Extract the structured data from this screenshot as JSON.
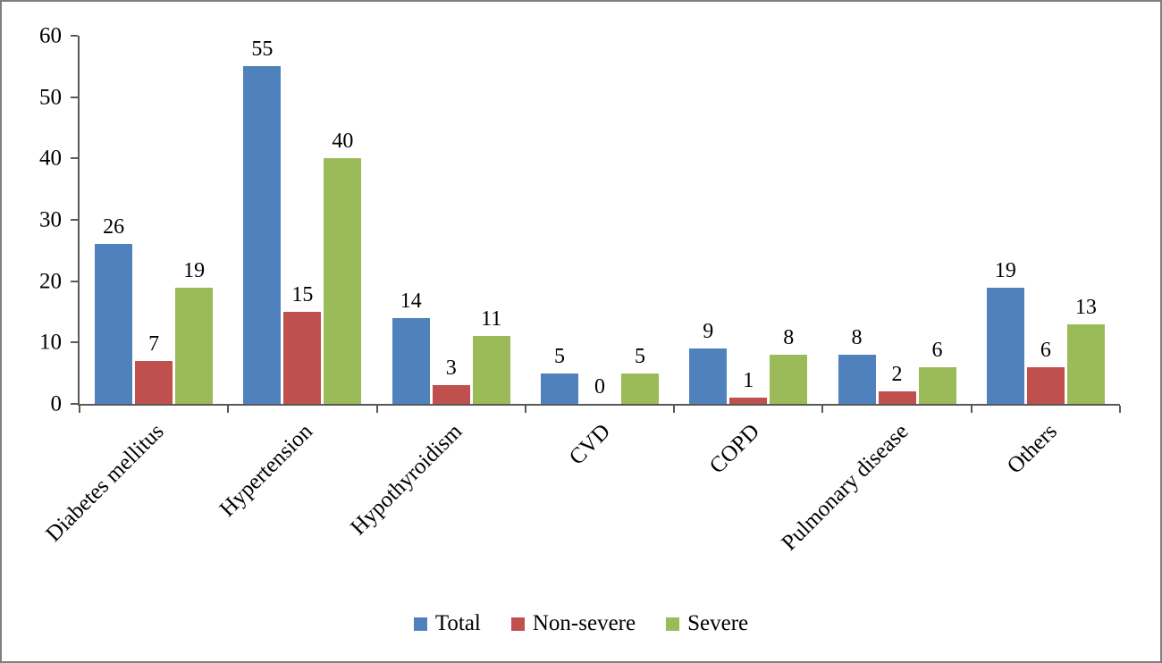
{
  "chart_data": {
    "type": "bar",
    "title": "",
    "xlabel": "",
    "ylabel": "",
    "categories": [
      "Diabetes mellitus",
      "Hypertension",
      "Hypothyroidism",
      "CVD",
      "COPD",
      "Pulmonary disease",
      "Others"
    ],
    "series": [
      {
        "name": "Total",
        "color": "#4F81BD",
        "values": [
          26,
          55,
          14,
          5,
          9,
          8,
          19
        ]
      },
      {
        "name": "Non-severe",
        "color": "#C0504D",
        "values": [
          7,
          15,
          3,
          0,
          1,
          2,
          6
        ]
      },
      {
        "name": "Severe",
        "color": "#9BBB59",
        "values": [
          19,
          40,
          11,
          5,
          8,
          6,
          13
        ]
      }
    ],
    "ylim": [
      0,
      60
    ],
    "yticks": [
      0,
      10,
      20,
      30,
      40,
      50,
      60
    ],
    "grid": false,
    "data_labels": true,
    "legend_position": "bottom",
    "axis_color": "#595959",
    "border_color": "#7f7f7f"
  }
}
